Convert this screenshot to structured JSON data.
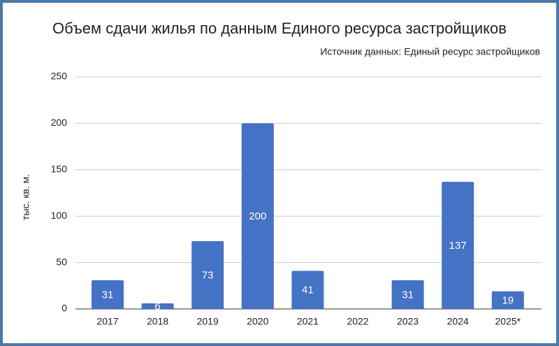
{
  "chart_data": {
    "type": "bar",
    "title": "Объем сдачи жилья по данным Единого ресурса застройщиков",
    "subtitle": "Источник данных: Единый ресурс застройщиков",
    "y_label": "тыс. кв. м.",
    "categories": [
      "2017",
      "2018",
      "2019",
      "2020",
      "2021",
      "2022",
      "2023",
      "2024",
      "2025*"
    ],
    "values": [
      31,
      6,
      73,
      200,
      41,
      null,
      31,
      137,
      19
    ],
    "color": "#4472c4",
    "ylim": [
      0,
      250
    ],
    "yticks": [
      0,
      50,
      100,
      150,
      200,
      250
    ],
    "grid": true
  }
}
